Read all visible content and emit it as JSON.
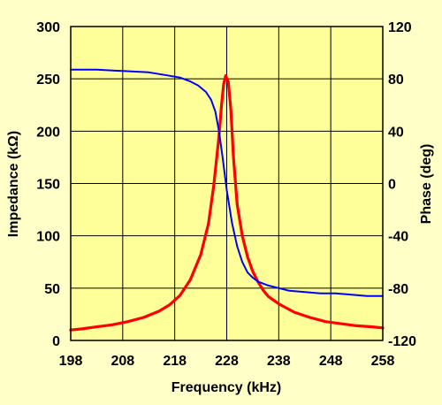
{
  "colors": {
    "background": "#ffffc8",
    "plot_area": "#ffff99",
    "impedance_line": "#ff0000",
    "phase_line": "#0000ff",
    "grid": "#000000"
  },
  "chart_data": {
    "type": "line",
    "title": "",
    "xlabel": "Frequency (kHz)",
    "ylabel_left": "Impedance (kΩ)",
    "ylabel_right": "Phase (deg)",
    "xlim": [
      198,
      258
    ],
    "ylim_left": [
      0,
      300
    ],
    "ylim_right": [
      -120,
      120
    ],
    "grid": true,
    "legend": "none",
    "x_ticks": [
      "198",
      "208",
      "218",
      "228",
      "238",
      "248",
      "258"
    ],
    "y_left_ticks": [
      "0",
      "50",
      "100",
      "150",
      "200",
      "250",
      "300"
    ],
    "y_right_ticks": [
      "-120",
      "-80",
      "-40",
      "0",
      "40",
      "80",
      "120"
    ],
    "series": [
      {
        "axis": "left",
        "color": "#ff0000",
        "x": [
          198,
          200,
          203,
          206,
          209,
          212,
          215,
          217,
          219,
          221,
          223,
          224.5,
          225.5,
          226.5,
          227,
          227.4,
          227.8,
          228.3,
          228.8,
          229.3,
          230,
          231,
          232,
          233,
          234,
          235,
          236,
          238,
          241,
          244,
          247,
          250,
          253,
          256,
          258
        ],
        "y": [
          10,
          11,
          13,
          15,
          18,
          22,
          28,
          34,
          43,
          58,
          82,
          112,
          148,
          195,
          225,
          245,
          253,
          247,
          220,
          175,
          130,
          100,
          80,
          66,
          56,
          48,
          42,
          35,
          27,
          22,
          18,
          16,
          14,
          13,
          12
        ]
      },
      {
        "axis": "right",
        "color": "#0000ff",
        "x": [
          198,
          203,
          208,
          213,
          216,
          219,
          221,
          222.5,
          224,
          225,
          225.8,
          226.5,
          227.2,
          228,
          229,
          230,
          231,
          232,
          233,
          234,
          236,
          238,
          240,
          243,
          246,
          249,
          252,
          255,
          258
        ],
        "y": [
          87,
          87,
          86,
          85,
          83,
          81,
          78,
          75,
          70,
          64,
          55,
          40,
          20,
          -5,
          -30,
          -48,
          -60,
          -68,
          -72,
          -75,
          -78,
          -80,
          -82,
          -83,
          -84,
          -84,
          -85,
          -86,
          -86
        ]
      }
    ]
  }
}
